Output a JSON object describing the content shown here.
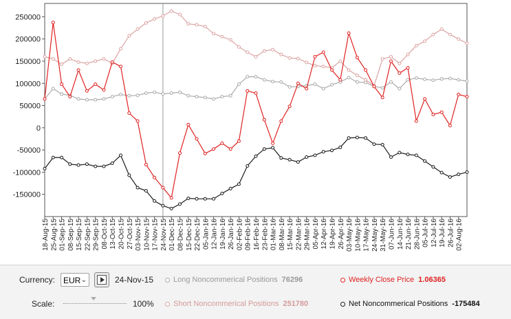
{
  "chart_data": {
    "type": "line",
    "title": "",
    "xlabel": "",
    "ylabel": "",
    "ylim": [
      -200000,
      280000
    ],
    "yticks": [
      -150000,
      -100000,
      -50000,
      0,
      50000,
      100000,
      150000,
      200000,
      250000
    ],
    "grid": false,
    "x_tick_labels": [
      "25-Aug-15",
      "01-Sep-15",
      "08-Sep-15",
      "15-Sep-15",
      "22-Sep-15",
      "29-Sep-15",
      "08-Oct-15",
      "13-Oct-15",
      "20-Oct-15",
      "27-Oct-15",
      "03-Nov-15",
      "10-Nov-15",
      "17-Nov-15",
      "24-Nov-15",
      "01-Dec-15",
      "08-Dec-15",
      "15-Dec-15",
      "22-Dec-15",
      "05-Jan-16",
      "12-Jan-16",
      "19-Jan-16",
      "26-Jan-16",
      "02-Feb-16",
      "09-Feb-16",
      "16-Feb-16",
      "23-Feb-16",
      "01-Mar-16",
      "08-Mar-16",
      "15-Mar-16",
      "22-Mar-16",
      "29-Mar-16",
      "05-Apr-16",
      "12-Apr-16",
      "19-Apr-16",
      "26-Apr-16",
      "03-May-16",
      "10-May-16",
      "17-May-16",
      "24-May-16",
      "31-May-16",
      "07-Jun-16",
      "14-Jun-16",
      "21-Jun-16",
      "28-Jun-16",
      "05-Jul-16",
      "12-Jul-16",
      "19-Jul-16",
      "26-Jul-16",
      "02-Aug-16"
    ],
    "x_edge_left": "18-Aug-15",
    "x_edge_right": "02-Aug-16",
    "series": [
      {
        "name": "Long Noncommerical Positions",
        "color": "#aaaaaa",
        "weeks": [
          0,
          1,
          2,
          3,
          4,
          5,
          6,
          7,
          8,
          9,
          10,
          11,
          12,
          13,
          14,
          15,
          16,
          17,
          18,
          19,
          20,
          21,
          22,
          23,
          24,
          25,
          26,
          27,
          28,
          29,
          30,
          31,
          32,
          33,
          34,
          35,
          36,
          37,
          38,
          39,
          40,
          41,
          42,
          43,
          44,
          45,
          46,
          47,
          48,
          49,
          50
        ],
        "values": [
          65000,
          88000,
          76000,
          73000,
          65000,
          63000,
          63000,
          65000,
          70000,
          75000,
          72000,
          73000,
          78000,
          80000,
          76296,
          78000,
          80000,
          72000,
          70000,
          68000,
          65000,
          70000,
          72000,
          98000,
          115000,
          115000,
          108000,
          104000,
          103000,
          92000,
          93000,
          95000,
          98000,
          88000,
          97000,
          103000,
          113000,
          103000,
          102000,
          93000,
          90000,
          103000,
          88000,
          108000,
          112000,
          109000,
          107000,
          110000,
          111000,
          108000,
          105000
        ]
      },
      {
        "name": "Short Noncommerical Positions",
        "color": "#dba3a3",
        "weeks": [
          0,
          1,
          2,
          3,
          4,
          5,
          6,
          7,
          8,
          9,
          10,
          11,
          12,
          13,
          14,
          15,
          16,
          17,
          18,
          19,
          20,
          21,
          22,
          23,
          24,
          25,
          26,
          27,
          28,
          29,
          30,
          31,
          32,
          33,
          34,
          35,
          36,
          37,
          38,
          39,
          40,
          41,
          42,
          43,
          44,
          45,
          46,
          47,
          48,
          49,
          50
        ],
        "values": [
          160000,
          155000,
          143000,
          155000,
          148000,
          145000,
          150000,
          155000,
          145000,
          178000,
          207000,
          222000,
          236000,
          245000,
          251780,
          263000,
          255000,
          234000,
          232000,
          228000,
          212000,
          205000,
          198000,
          182000,
          170000,
          160000,
          173000,
          176000,
          165000,
          157000,
          156000,
          147000,
          140000,
          138000,
          135000,
          150000,
          130000,
          118000,
          108000,
          95000,
          155000,
          160000,
          145000,
          165000,
          185000,
          195000,
          210000,
          222000,
          210000,
          200000,
          190000
        ]
      },
      {
        "name": "Weekly Close Price",
        "color": "#e02020",
        "weeks": [
          0,
          1,
          2,
          3,
          4,
          5,
          6,
          7,
          8,
          9,
          10,
          11,
          12,
          13,
          14,
          15,
          16,
          17,
          18,
          19,
          20,
          21,
          22,
          23,
          24,
          25,
          26,
          27,
          28,
          29,
          30,
          31,
          32,
          33,
          34,
          35,
          36,
          37,
          38,
          39,
          40,
          41,
          42,
          43,
          44,
          45,
          46,
          47,
          48,
          49,
          50
        ],
        "values": [
          65000,
          237000,
          98000,
          70000,
          130000,
          83000,
          98000,
          85000,
          148000,
          138000,
          33000,
          15000,
          -83000,
          -112000,
          -135000,
          -158000,
          -57000,
          7000,
          -25000,
          -58000,
          -48000,
          -35000,
          -48000,
          -30000,
          83000,
          78000,
          18000,
          -35000,
          15000,
          48000,
          100000,
          88000,
          160000,
          170000,
          130000,
          108000,
          213000,
          158000,
          130000,
          93000,
          68000,
          150000,
          123000,
          135000,
          15000,
          65000,
          30000,
          35000,
          5000,
          75000,
          70000
        ]
      },
      {
        "name": "Net Noncommerical Positions",
        "color": "#1a1a1a",
        "weeks": [
          0,
          1,
          2,
          3,
          4,
          5,
          6,
          7,
          8,
          9,
          10,
          11,
          12,
          13,
          14,
          15,
          16,
          17,
          18,
          19,
          20,
          21,
          22,
          23,
          24,
          25,
          26,
          27,
          28,
          29,
          30,
          31,
          32,
          33,
          34,
          35,
          36,
          37,
          38,
          39,
          40,
          41,
          42,
          43,
          44,
          45,
          46,
          47,
          48,
          49,
          50
        ],
        "values": [
          -92000,
          -67000,
          -67000,
          -82000,
          -84000,
          -82000,
          -87000,
          -87000,
          -80000,
          -62000,
          -107000,
          -135000,
          -142000,
          -165000,
          -175484,
          -182000,
          -172000,
          -159000,
          -160000,
          -160000,
          -160000,
          -148000,
          -137000,
          -127000,
          -86000,
          -64000,
          -48000,
          -45000,
          -68000,
          -72000,
          -77000,
          -66000,
          -62000,
          -54000,
          -51000,
          -44000,
          -23000,
          -22000,
          -23000,
          -37000,
          -38000,
          -66000,
          -56000,
          -60000,
          -62000,
          -75000,
          -88000,
          -101000,
          -111000,
          -105000,
          -100000
        ]
      }
    ],
    "cursor_week": 14
  },
  "controls": {
    "currency_label": "Currency:",
    "currency_value": "EUR",
    "date": "24-Nov-15",
    "scale_label": "Scale:",
    "scale_value": "100%",
    "scale_level_percent": 100,
    "legend": [
      {
        "label": "Long Noncommerical Positions",
        "value": "76296",
        "color": "#aaaaaa",
        "text_color": "#999999"
      },
      {
        "label": "Weekly Close Price",
        "value": "1.06365",
        "color": "#e02020",
        "text_color": "#e02020"
      },
      {
        "label": "Short Noncommerical Positions",
        "value": "251780",
        "color": "#dba3a3",
        "text_color": "#d49a9a"
      },
      {
        "label": "Net Noncommerical Positions",
        "value": "-175484",
        "color": "#1a1a1a",
        "text_color": "#111111"
      }
    ]
  }
}
